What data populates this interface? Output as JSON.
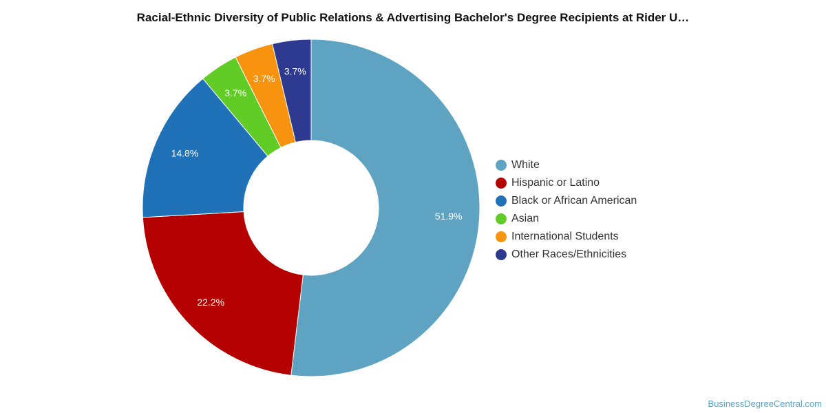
{
  "chart_data": {
    "type": "pie",
    "title": "Racial-Ethnic Diversity of Public Relations & Advertising Bachelor's Degree Recipients at Rider U…",
    "donut": true,
    "legend_position": "right",
    "series": [
      {
        "name": "White",
        "value": 51.9,
        "label": "51.9%",
        "color": "#5ea3c1"
      },
      {
        "name": "Hispanic or Latino",
        "value": 22.2,
        "label": "22.2%",
        "color": "#b50000"
      },
      {
        "name": "Black or African American",
        "value": 14.8,
        "label": "14.8%",
        "color": "#1f72b8"
      },
      {
        "name": "Asian",
        "value": 3.7,
        "label": "3.7%",
        "color": "#62cc27"
      },
      {
        "name": "International Students",
        "value": 3.7,
        "label": "3.7%",
        "color": "#f7930f"
      },
      {
        "name": "Other Races/Ethnicities",
        "value": 3.7,
        "label": "3.7%",
        "color": "#2e3a8f"
      }
    ]
  },
  "credit": "BusinessDegreeCentral.com"
}
